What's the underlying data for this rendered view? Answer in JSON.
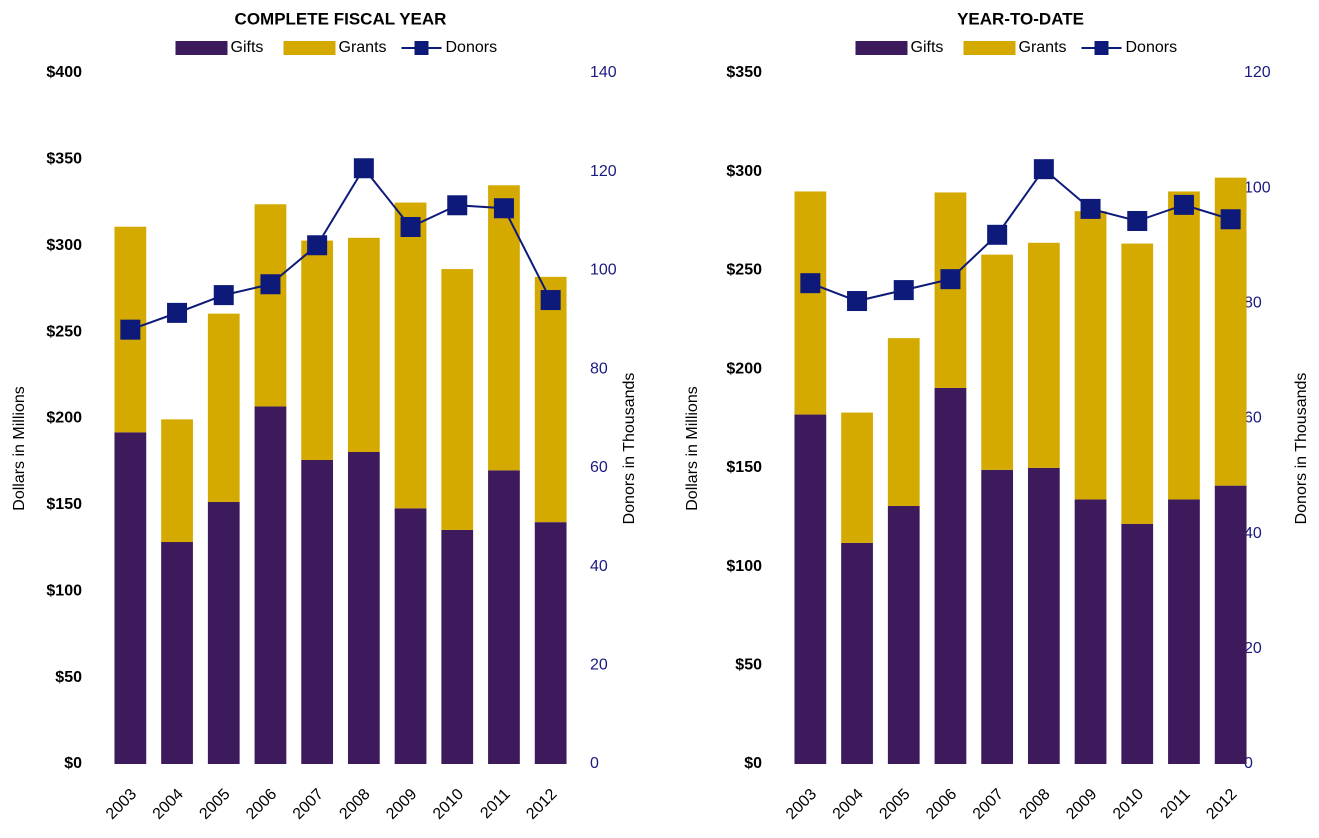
{
  "chart_data": [
    {
      "type": "bar",
      "title": "COMPLETE FISCAL YEAR",
      "ylabel": "Dollars in Millions",
      "y2label": "Donors in Thousands",
      "categories": [
        "2003",
        "2004",
        "2005",
        "2006",
        "2007",
        "2008",
        "2009",
        "2010",
        "2011",
        "2012"
      ],
      "series": [
        {
          "name": "Gifts",
          "color": "#3c1a5b",
          "values": [
            192,
            128.5,
            151.7,
            207,
            176,
            180.6,
            148,
            135.5,
            170,
            140
          ]
        },
        {
          "name": "Grants",
          "color": "#d4a900",
          "values": [
            119,
            71,
            109,
            117,
            127,
            124,
            177,
            151,
            165,
            142
          ]
        },
        {
          "name": "Donors",
          "type": "line",
          "axis": "y2",
          "color": "#0d1a7a",
          "values": [
            88,
            91.4,
            95,
            97.2,
            105.1,
            120.7,
            108.8,
            113.2,
            112.6,
            94
          ]
        }
      ],
      "ylim": [
        0,
        400
      ],
      "yticks": [
        {
          "value": 0,
          "label": "$0"
        },
        {
          "value": 50,
          "label": "$50"
        },
        {
          "value": 100,
          "label": "$100"
        },
        {
          "value": 150,
          "label": "$150"
        },
        {
          "value": 200,
          "label": "$200"
        },
        {
          "value": 250,
          "label": "$250"
        },
        {
          "value": 300,
          "label": "$300"
        },
        {
          "value": 350,
          "label": "$350"
        },
        {
          "value": 400,
          "label": "$400"
        }
      ],
      "y2lim": [
        0,
        140
      ],
      "y2ticks": [
        0,
        20,
        40,
        60,
        80,
        100,
        120,
        140
      ]
    },
    {
      "type": "bar",
      "title": "YEAR-TO-DATE",
      "ylabel": "Dollars in Millions",
      "y2label": "Donors in Thousands",
      "categories": [
        "2003",
        "2004",
        "2005",
        "2006",
        "2007",
        "2008",
        "2009",
        "2010",
        "2011",
        "2012"
      ],
      "series": [
        {
          "name": "Gifts",
          "color": "#3c1a5b",
          "values": [
            177,
            112,
            130.7,
            190.5,
            149,
            150,
            134,
            121.6,
            134,
            141
          ]
        },
        {
          "name": "Grants",
          "color": "#d4a900",
          "values": [
            113,
            66,
            85,
            99,
            109,
            114,
            146,
            142,
            156,
            156
          ]
        },
        {
          "name": "Donors",
          "type": "line",
          "axis": "y2",
          "color": "#0d1a7a",
          "values": [
            83.5,
            80.4,
            82.3,
            84.2,
            91.9,
            103.3,
            96.4,
            94.3,
            97.1,
            94.6
          ]
        }
      ],
      "ylim": [
        0,
        350
      ],
      "yticks": [
        {
          "value": 0,
          "label": "$0"
        },
        {
          "value": 50,
          "label": "$50"
        },
        {
          "value": 100,
          "label": "$100"
        },
        {
          "value": 150,
          "label": "$150"
        },
        {
          "value": 200,
          "label": "$200"
        },
        {
          "value": 250,
          "label": "$250"
        },
        {
          "value": 300,
          "label": "$300"
        },
        {
          "value": 350,
          "label": "$350"
        }
      ],
      "y2lim": [
        0,
        120
      ],
      "y2ticks": [
        0,
        20,
        40,
        60,
        80,
        100,
        120
      ]
    }
  ]
}
